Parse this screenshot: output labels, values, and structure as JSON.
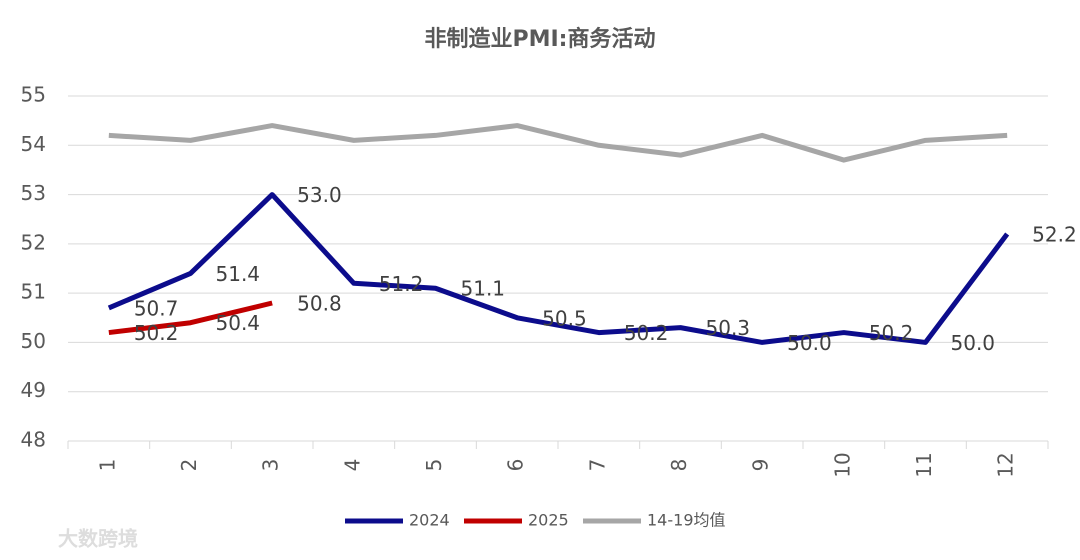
{
  "chart_data": {
    "type": "line",
    "title": "非制造业PMI:商务活动",
    "categories": [
      "1",
      "2",
      "3",
      "4",
      "5",
      "6",
      "7",
      "8",
      "9",
      "10",
      "11",
      "12"
    ],
    "series": [
      {
        "name": "2024",
        "color": "#0c0c8c",
        "values": [
          50.7,
          51.4,
          53.0,
          51.2,
          51.1,
          50.5,
          50.2,
          50.3,
          50.0,
          50.2,
          50.0,
          52.2
        ],
        "value_labels": [
          "50.7",
          "51.4",
          "53.0",
          "51.2",
          "51.1",
          "50.5",
          "50.2",
          "50.3",
          "50.0",
          "50.2",
          "50.0",
          "52.2"
        ]
      },
      {
        "name": "2025",
        "color": "#c00000",
        "values": [
          50.2,
          50.4,
          50.8,
          null,
          null,
          null,
          null,
          null,
          null,
          null,
          null,
          null
        ],
        "value_labels": [
          "50.2",
          "50.4",
          "50.8",
          null,
          null,
          null,
          null,
          null,
          null,
          null,
          null,
          null
        ]
      },
      {
        "name": "14-19均值",
        "color": "#a6a6a6",
        "values": [
          54.2,
          54.1,
          54.4,
          54.1,
          54.2,
          54.4,
          54.0,
          53.8,
          54.2,
          53.7,
          54.1,
          54.2
        ]
      }
    ],
    "ylim": [
      48,
      55
    ],
    "yticks": [
      48,
      49,
      50,
      51,
      52,
      53,
      54,
      55
    ],
    "grid": true,
    "legend": "bottom",
    "watermark": "大数跨境"
  }
}
